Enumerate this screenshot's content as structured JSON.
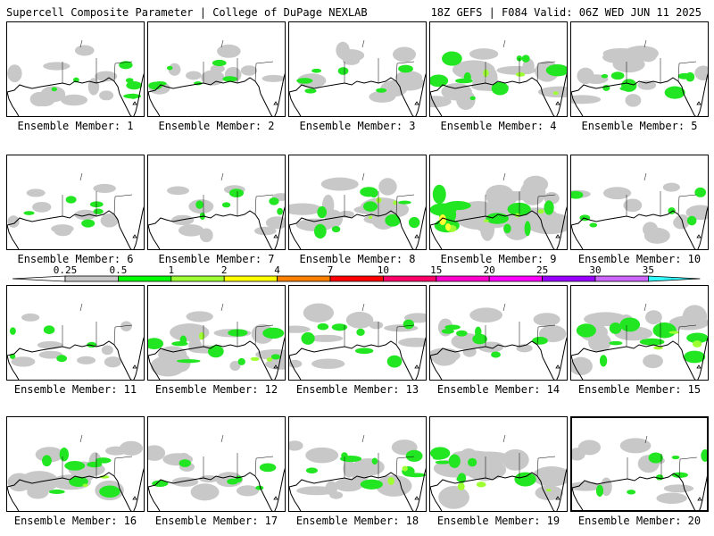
{
  "header": {
    "left": "Supercell Composite Parameter | College of DuPage NEXLAB",
    "right": "18Z GEFS | F084 Valid: 06Z WED JUN 11 2025"
  },
  "panel_label_prefix": "Ensemble Member: ",
  "members": [
    {
      "number": "1",
      "selected": false,
      "intensity": 0.9,
      "coverage": "west and east patches"
    },
    {
      "number": "2",
      "selected": false,
      "intensity": 0.7,
      "coverage": "scattered"
    },
    {
      "number": "3",
      "selected": false,
      "intensity": 0.8,
      "coverage": "scattered"
    },
    {
      "number": "4",
      "selected": false,
      "intensity": 1.4,
      "coverage": "broad band"
    },
    {
      "number": "5",
      "selected": false,
      "intensity": 1.1,
      "coverage": "band"
    },
    {
      "number": "6",
      "selected": false,
      "intensity": 0.6,
      "coverage": "sparse"
    },
    {
      "number": "7",
      "selected": false,
      "intensity": 0.7,
      "coverage": "sparse"
    },
    {
      "number": "8",
      "selected": false,
      "intensity": 1.3,
      "coverage": "band"
    },
    {
      "number": "9",
      "selected": false,
      "intensity": 1.8,
      "coverage": "broad with yellow core"
    },
    {
      "number": "10",
      "selected": false,
      "intensity": 0.8,
      "coverage": "scattered"
    },
    {
      "number": "11",
      "selected": false,
      "intensity": 0.6,
      "coverage": "sparse"
    },
    {
      "number": "12",
      "selected": false,
      "intensity": 1.3,
      "coverage": "band"
    },
    {
      "number": "13",
      "selected": false,
      "intensity": 1.0,
      "coverage": "gulf patches"
    },
    {
      "number": "14",
      "selected": false,
      "intensity": 0.9,
      "coverage": "scattered"
    },
    {
      "number": "15",
      "selected": false,
      "intensity": 1.4,
      "coverage": "broad"
    },
    {
      "number": "16",
      "selected": false,
      "intensity": 1.2,
      "coverage": "band"
    },
    {
      "number": "17",
      "selected": false,
      "intensity": 0.8,
      "coverage": "scattered"
    },
    {
      "number": "18",
      "selected": false,
      "intensity": 1.2,
      "coverage": "band"
    },
    {
      "number": "19",
      "selected": false,
      "intensity": 1.3,
      "coverage": "band"
    },
    {
      "number": "20",
      "selected": true,
      "intensity": 1.0,
      "coverage": "band and gulf"
    }
  ],
  "colorbar": {
    "ticks": [
      "0.25",
      "0.5",
      "1",
      "2",
      "4",
      "7",
      "10",
      "15",
      "20",
      "25",
      "30",
      "35"
    ],
    "colors": [
      "#ffffff",
      "#c8c8c8",
      "#00ff00",
      "#9eff33",
      "#ffff00",
      "#ff8000",
      "#ff0000",
      "#ff0066",
      "#ff00cc",
      "#ff00ff",
      "#9900ff",
      "#cc66ff",
      "#33ffff"
    ]
  }
}
